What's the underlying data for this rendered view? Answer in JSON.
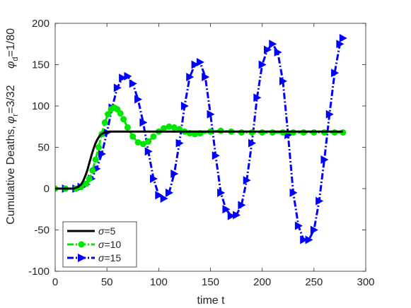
{
  "chart_data": {
    "type": "line",
    "title": "",
    "xlabel": "time t",
    "ylabel": {
      "main": "Cumulative Deaths,",
      "param1": {
        "sym": "φ",
        "sub": "r",
        "rest": "=3/32"
      },
      "param2": {
        "sym": "φ",
        "sub": "d",
        "rest": "=1/80"
      }
    },
    "xlim": [
      0,
      300
    ],
    "ylim": [
      -100,
      200
    ],
    "xticks": [
      0,
      50,
      100,
      150,
      200,
      250,
      300
    ],
    "yticks": [
      -100,
      -50,
      0,
      50,
      100,
      150,
      200
    ],
    "grid": false,
    "legend_position": "bottom-left",
    "series": [
      {
        "name": "σ=5",
        "legend": {
          "sym": "σ",
          "rest": "=5"
        },
        "color": "#000000",
        "style": "solid",
        "marker": "none",
        "x": [
          0,
          10,
          18,
          22,
          25,
          27,
          29,
          31,
          33,
          35,
          37,
          39,
          41,
          43,
          45,
          48,
          52,
          60,
          70,
          80,
          90,
          100,
          110,
          120,
          130,
          140,
          150,
          160,
          170,
          180,
          190,
          200,
          210,
          220,
          230,
          240,
          250,
          260,
          270,
          278
        ],
        "y": [
          0,
          0,
          0,
          2,
          5,
          9,
          15,
          22,
          31,
          40,
          48,
          55,
          60,
          64,
          66,
          68,
          69,
          69,
          69,
          69,
          69,
          69,
          69,
          69,
          69,
          69,
          69,
          69,
          69,
          69,
          69,
          69,
          69,
          69,
          69,
          69,
          69,
          69,
          69,
          69
        ]
      },
      {
        "name": "σ=10",
        "legend": {
          "sym": "σ",
          "rest": "=10"
        },
        "color": "#00e600",
        "style": "dashdot",
        "marker": "circle",
        "x": [
          0,
          10,
          20,
          25,
          30,
          33,
          36,
          39,
          42,
          45,
          48,
          51,
          54,
          57,
          60,
          63,
          66,
          70,
          75,
          80,
          85,
          90,
          95,
          100,
          105,
          110,
          115,
          120,
          125,
          130,
          135,
          140,
          150,
          160,
          170,
          180,
          190,
          200,
          210,
          220,
          230,
          240,
          250,
          260,
          270,
          278
        ],
        "y": [
          0,
          0,
          0,
          2,
          6,
          12,
          22,
          35,
          50,
          66,
          80,
          90,
          96,
          98,
          96,
          91,
          84,
          74,
          63,
          56,
          54,
          57,
          63,
          69,
          73,
          75,
          74,
          72,
          69,
          67,
          66,
          67,
          69,
          70,
          69,
          68,
          68,
          68,
          68,
          68,
          68,
          68,
          68,
          68,
          68,
          68
        ]
      },
      {
        "name": "σ=15",
        "legend": {
          "sym": "σ",
          "rest": "=15"
        },
        "color": "#0000ff",
        "style": "dashdot",
        "marker": "triangle-right",
        "x": [
          0,
          10,
          20,
          25,
          30,
          35,
          40,
          45,
          50,
          55,
          60,
          65,
          70,
          75,
          80,
          85,
          90,
          95,
          100,
          105,
          110,
          115,
          120,
          125,
          130,
          135,
          140,
          145,
          150,
          155,
          160,
          165,
          170,
          175,
          180,
          185,
          190,
          195,
          200,
          205,
          210,
          215,
          220,
          225,
          230,
          235,
          240,
          245,
          250,
          255,
          260,
          265,
          270,
          275,
          278
        ],
        "y": [
          0,
          0,
          0,
          2,
          5,
          12,
          24,
          42,
          68,
          98,
          122,
          134,
          136,
          127,
          108,
          80,
          45,
          12,
          -8,
          -12,
          -5,
          18,
          55,
          100,
          135,
          150,
          153,
          135,
          90,
          40,
          -5,
          -25,
          -33,
          -32,
          -20,
          10,
          55,
          110,
          150,
          168,
          175,
          165,
          130,
          65,
          -5,
          -45,
          -62,
          -62,
          -50,
          -15,
          35,
          90,
          140,
          175,
          182
        ]
      }
    ]
  }
}
